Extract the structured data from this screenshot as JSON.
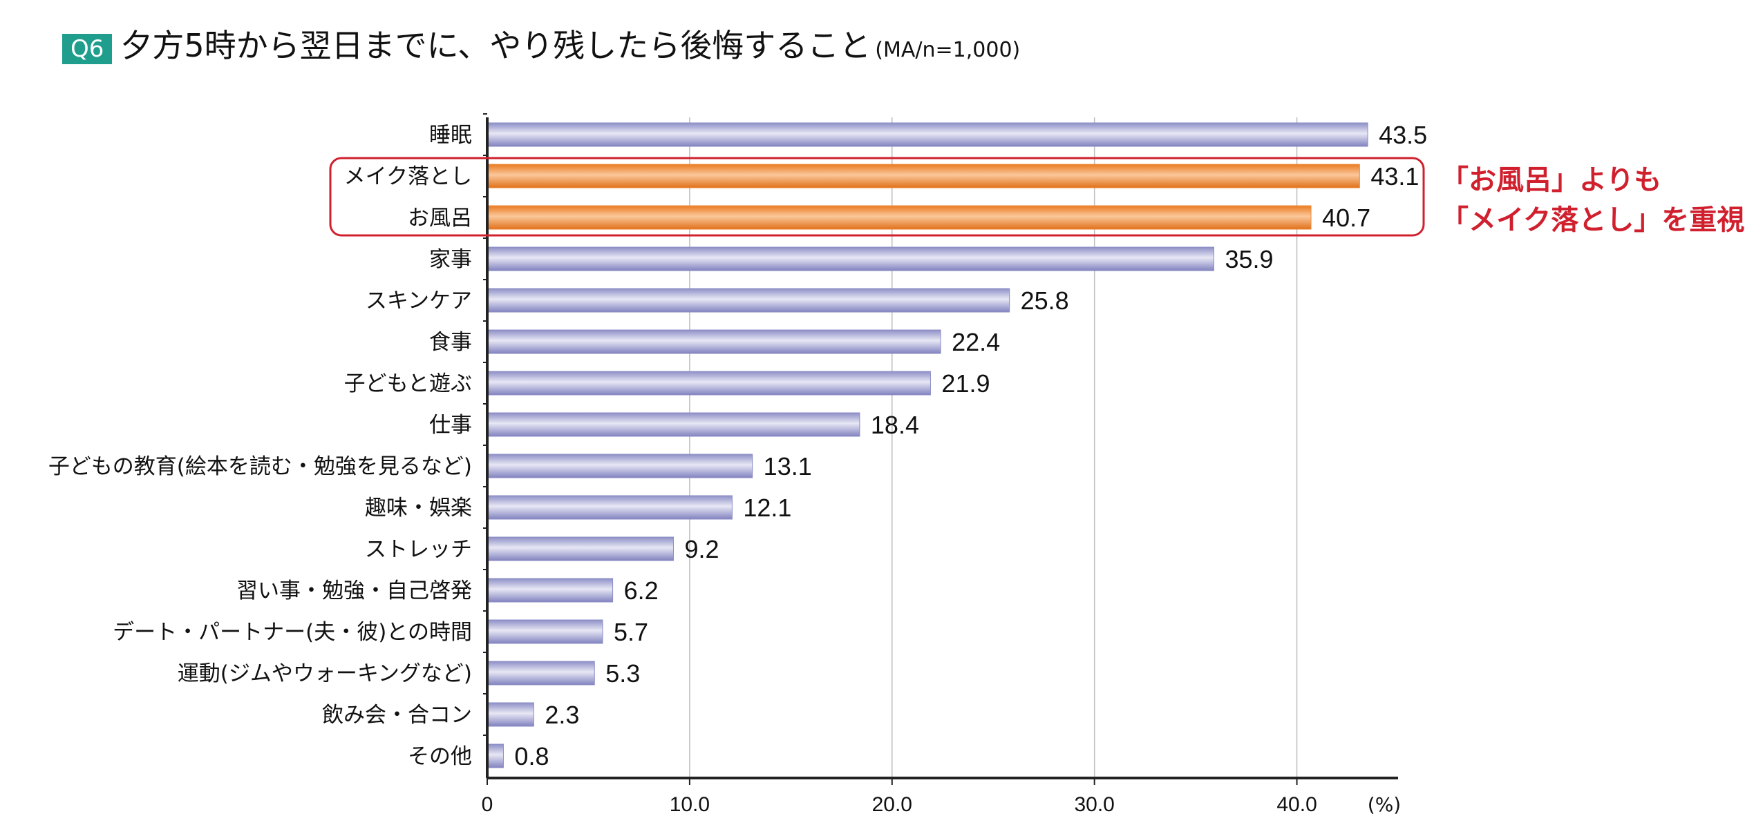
{
  "header": {
    "badge": "Q6",
    "title": "夕方5時から翌日までに、やり残したら後悔すること",
    "note": "(MA/n=1,000)"
  },
  "callout": {
    "line1": "「お風呂」よりも",
    "line2": "「メイク落とし」を重視"
  },
  "colors": {
    "default_bar": "#a7a8d6",
    "highlight_bar": "#f08a36",
    "callout_red": "#d0202e",
    "badge": "#1f9e8e"
  },
  "chart_data": {
    "type": "bar",
    "orientation": "horizontal",
    "categories": [
      "睡眠",
      "メイク落とし",
      "お風呂",
      "家事",
      "スキンケア",
      "食事",
      "子どもと遊ぶ",
      "仕事",
      "子どもの教育(絵本を読む・勉強を見るなど)",
      "趣味・娯楽",
      "ストレッチ",
      "習い事・勉強・自己啓発",
      "デート・パートナー(夫・彼)との時間",
      "運動(ジムやウォーキングなど)",
      "飲み会・合コン",
      "その他"
    ],
    "values": [
      43.5,
      43.1,
      40.7,
      35.9,
      25.8,
      22.4,
      21.9,
      18.4,
      13.1,
      12.1,
      9.2,
      6.2,
      5.7,
      5.3,
      2.3,
      0.8
    ],
    "value_labels": [
      "43.5",
      "43.1",
      "40.7",
      "35.9",
      "25.8",
      "22.4",
      "21.9",
      "18.4",
      "13.1",
      "12.1",
      "9.2",
      "6.2",
      "5.7",
      "5.3",
      "2.3",
      "0.8"
    ],
    "highlighted": [
      "メイク落とし",
      "お風呂"
    ],
    "xlim": [
      0,
      45
    ],
    "xticks": [
      0,
      10,
      20,
      30,
      40
    ],
    "xtick_labels": [
      "0",
      "10.0",
      "20.0",
      "30.0",
      "40.0"
    ],
    "x_unit": "(%)",
    "grid": true
  }
}
